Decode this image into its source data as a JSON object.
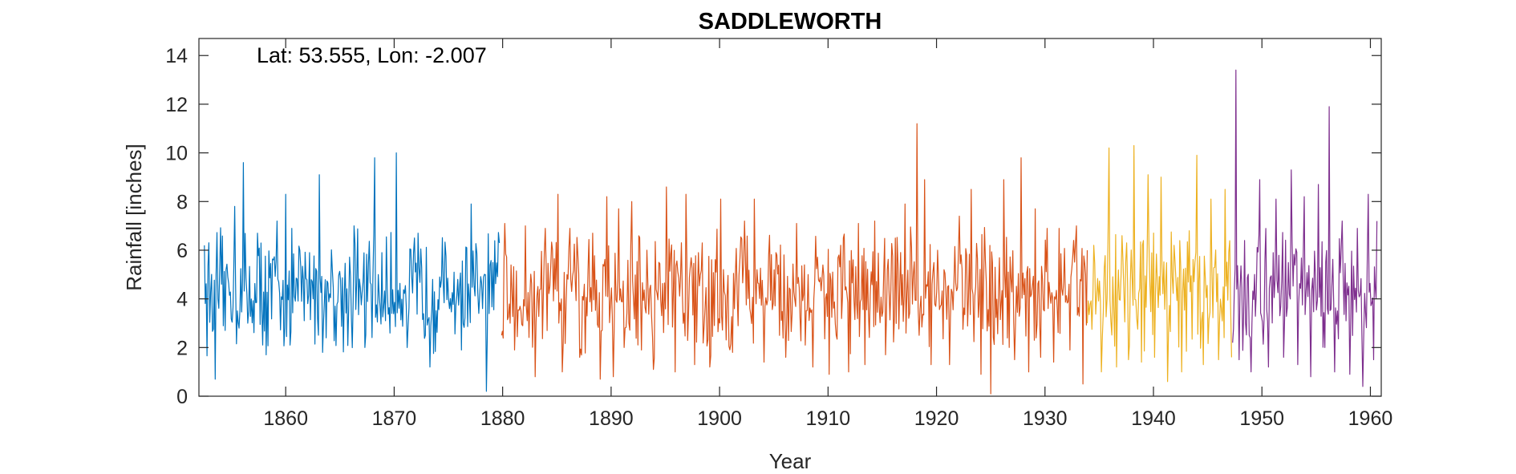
{
  "chart_data": {
    "type": "line",
    "title": "SADDLEWORTH",
    "annotation": "Lat: 53.555, Lon: -2.007",
    "xlabel": "Year",
    "ylabel": "Rainfall [inches]",
    "xlim": [
      1852,
      1961
    ],
    "ylim": [
      0,
      14.7
    ],
    "x_ticks": [
      1860,
      1870,
      1880,
      1890,
      1900,
      1910,
      1920,
      1930,
      1940,
      1950,
      1960
    ],
    "y_ticks": [
      0,
      2,
      4,
      6,
      8,
      10,
      12,
      14
    ],
    "grid": false,
    "box": true,
    "series": [
      {
        "color": "#0072BD",
        "x": [
          1852.5,
          1853.5,
          1854.5,
          1855.3,
          1856.1,
          1856.5,
          1857.4,
          1858.2,
          1859.2,
          1860.0,
          1860.4,
          1861.3,
          1862.2,
          1863.1,
          1863.4,
          1864.3,
          1865.4,
          1866.3,
          1867.3,
          1868.2,
          1869.2,
          1870.2,
          1871.2,
          1872.2,
          1873.3,
          1874.2,
          1875.1,
          1876.2,
          1877.1,
          1877.8,
          1878.5,
          1879.7
        ],
        "y": [
          6.2,
          0.7,
          5.2,
          7.8,
          9.6,
          3.0,
          6.7,
          1.7,
          7.2,
          8.3,
          2.1,
          6.0,
          5.9,
          9.1,
          1.8,
          5.2,
          4.1,
          7.0,
          2.0,
          9.8,
          3.1,
          10.0,
          2.0,
          6.7,
          1.2,
          4.9,
          3.6,
          1.9,
          7.9,
          3.4,
          0.2,
          6.3
        ]
      },
      {
        "color": "#D95319",
        "x": [
          1879.9,
          1880.2,
          1881.1,
          1882.1,
          1883.0,
          1883.5,
          1884.1,
          1885.1,
          1885.5,
          1886.2,
          1887.1,
          1888.3,
          1889.0,
          1889.6,
          1890.2,
          1890.7,
          1891.2,
          1891.9,
          1892.8,
          1893.3,
          1893.9,
          1894.4,
          1895.1,
          1895.9,
          1896.9,
          1897.7,
          1898.4,
          1899.1,
          1900.1,
          1901.2,
          1902.3,
          1903.2,
          1904.1,
          1905.2,
          1906.1,
          1907.1,
          1907.9,
          1908.6,
          1909.2,
          1910.1,
          1911.0,
          1911.9,
          1912.8,
          1913.4,
          1914.3,
          1915.3,
          1916.2,
          1917.1,
          1918.2,
          1918.4,
          1918.9,
          1919.5,
          1920.1,
          1921.2,
          1922.1,
          1923.2,
          1924.1,
          1925.0,
          1925.4,
          1926.2,
          1927.2,
          1927.8,
          1928.5,
          1929.1,
          1929.6,
          1930.2,
          1930.8,
          1931.3,
          1932.3,
          1932.9,
          1933.5,
          1933.9
        ],
        "y": [
          2.5,
          7.1,
          1.9,
          7.0,
          0.8,
          4.4,
          2.7,
          8.3,
          1.0,
          6.9,
          1.6,
          6.7,
          0.7,
          8.2,
          0.8,
          7.7,
          2.0,
          8.0,
          1.9,
          6.0,
          1.1,
          5.5,
          8.6,
          1.0,
          8.3,
          1.3,
          6.3,
          1.2,
          8.1,
          1.8,
          7.2,
          8.1,
          1.4,
          5.9,
          1.6,
          7.1,
          2.1,
          1.2,
          4.7,
          0.9,
          5.8,
          1.0,
          7.1,
          1.3,
          7.2,
          1.7,
          6.5,
          7.9,
          11.2,
          2.5,
          8.9,
          1.3,
          6.0,
          1.3,
          7.4,
          8.5,
          0.9,
          0.1,
          5.3,
          8.9,
          1.5,
          9.8,
          1.0,
          7.7,
          1.6,
          6.9,
          1.4,
          6.9,
          1.9,
          7.0,
          0.5,
          6.0
        ]
      },
      {
        "color": "#EDB120",
        "x": [
          1933.9,
          1934.5,
          1935.2,
          1935.9,
          1936.6,
          1937.1,
          1937.7,
          1938.2,
          1938.9,
          1939.5,
          1940.1,
          1940.7,
          1941.3,
          1941.9,
          1942.6,
          1943.3,
          1944.0,
          1944.6,
          1945.3,
          1946.0,
          1946.6,
          1947.2
        ],
        "y": [
          3.0,
          6.2,
          1.0,
          10.2,
          1.2,
          6.6,
          1.5,
          10.3,
          1.4,
          9.1,
          1.6,
          9.0,
          0.6,
          6.2,
          1.0,
          6.8,
          9.9,
          1.3,
          8.1,
          1.5,
          8.5,
          1.6
        ]
      },
      {
        "color": "#7E2F8E",
        "x": [
          1947.3,
          1947.6,
          1947.9,
          1948.4,
          1949.0,
          1949.8,
          1950.6,
          1951.3,
          1952.0,
          1952.7,
          1953.3,
          1953.9,
          1954.5,
          1955.2,
          1955.8,
          1956.2,
          1956.7,
          1957.4,
          1958.1,
          1958.8,
          1959.3,
          1959.8,
          1960.3,
          1960.6
        ],
        "y": [
          2.2,
          13.4,
          1.5,
          6.4,
          1.0,
          8.9,
          1.2,
          8.1,
          1.6,
          9.3,
          1.3,
          8.2,
          0.8,
          8.7,
          2.0,
          11.9,
          1.0,
          7.2,
          0.9,
          6.9,
          0.4,
          8.3,
          1.5,
          7.2
        ]
      }
    ]
  }
}
